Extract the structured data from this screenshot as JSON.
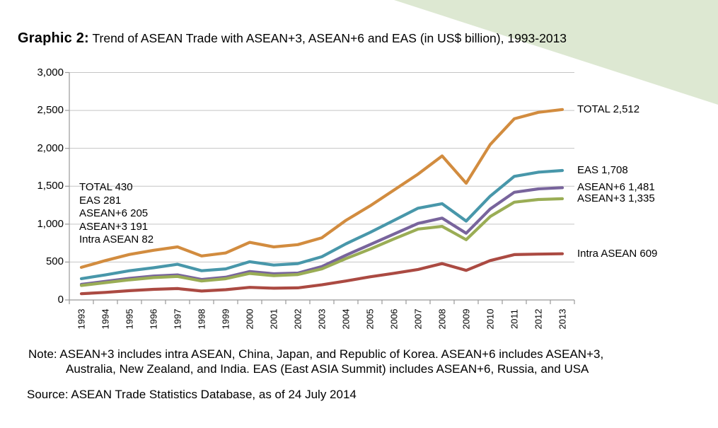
{
  "header": {
    "title_prefix": "Graphic 2:",
    "title_rest": " Trend of ASEAN Trade with ASEAN+3, ASEAN+6 and EAS (in US$ billion), 1993-2013"
  },
  "footer": {
    "note_line1": "Note: ASEAN+3 includes intra ASEAN, China, Japan, and Republic of Korea. ASEAN+6 includes ASEAN+3,",
    "note_line2": "Australia, New Zealand, and India. EAS (East ASIA Summit) includes ASEAN+6, Russia, and USA",
    "source": "Source: ASEAN Trade Statistics Database, as of 24 July 2014"
  },
  "decor": {
    "wedge_color": "#dde8d2"
  },
  "chart_data": {
    "type": "line",
    "title": "Trend of ASEAN Trade with ASEAN+3, ASEAN+6 and EAS (in US$ billion), 1993-2013",
    "unit": "US$ billion",
    "grid": true,
    "legend_position": "labels at line ends (right side) and first-year values (left annotation)",
    "x": [
      1993,
      1994,
      1995,
      1996,
      1997,
      1998,
      1999,
      2000,
      2001,
      2002,
      2003,
      2004,
      2005,
      2006,
      2007,
      2008,
      2009,
      2010,
      2011,
      2012,
      2013
    ],
    "ylim": [
      0,
      3000
    ],
    "ytick_step": 500,
    "ytick_labels": [
      "0",
      "500",
      "1,000",
      "1,500",
      "2,000",
      "2,500",
      "3,000"
    ],
    "axis_color": "#999999",
    "grid_color": "#c5c5c5",
    "series": [
      {
        "name": "TOTAL",
        "color": "#d28c3f",
        "start_label": "TOTAL 430",
        "end_label": "TOTAL 2,512",
        "values": [
          430,
          520,
          600,
          655,
          700,
          580,
          620,
          760,
          700,
          730,
          820,
          1050,
          1240,
          1450,
          1660,
          1900,
          1540,
          2050,
          2390,
          2475,
          2512
        ]
      },
      {
        "name": "EAS",
        "color": "#4897aa",
        "start_label": "EAS 281",
        "end_label": "EAS 1,708",
        "values": [
          281,
          330,
          385,
          425,
          470,
          385,
          410,
          505,
          460,
          480,
          570,
          740,
          890,
          1050,
          1210,
          1270,
          1040,
          1370,
          1630,
          1685,
          1708
        ]
      },
      {
        "name": "ASEAN+6",
        "color": "#78649c",
        "start_label": "ASEAN+6 205",
        "end_label": "ASEAN+6 1,481",
        "values": [
          205,
          245,
          285,
          315,
          330,
          270,
          300,
          375,
          345,
          355,
          440,
          590,
          730,
          870,
          1010,
          1080,
          880,
          1200,
          1420,
          1465,
          1481
        ]
      },
      {
        "name": "ASEAN+3",
        "color": "#9aad55",
        "start_label": "ASEAN+3 191",
        "end_label": "ASEAN+3 1,335",
        "values": [
          191,
          228,
          265,
          295,
          310,
          250,
          280,
          350,
          320,
          335,
          410,
          545,
          670,
          805,
          935,
          970,
          795,
          1100,
          1290,
          1325,
          1335
        ]
      },
      {
        "name": "Intra ASEAN",
        "color": "#ab4a42",
        "start_label": "Intra ASEAN 82",
        "end_label": "Intra ASEAN 609",
        "values": [
          82,
          100,
          122,
          140,
          150,
          118,
          135,
          166,
          155,
          160,
          200,
          250,
          305,
          352,
          402,
          480,
          390,
          520,
          598,
          605,
          609
        ]
      }
    ]
  }
}
